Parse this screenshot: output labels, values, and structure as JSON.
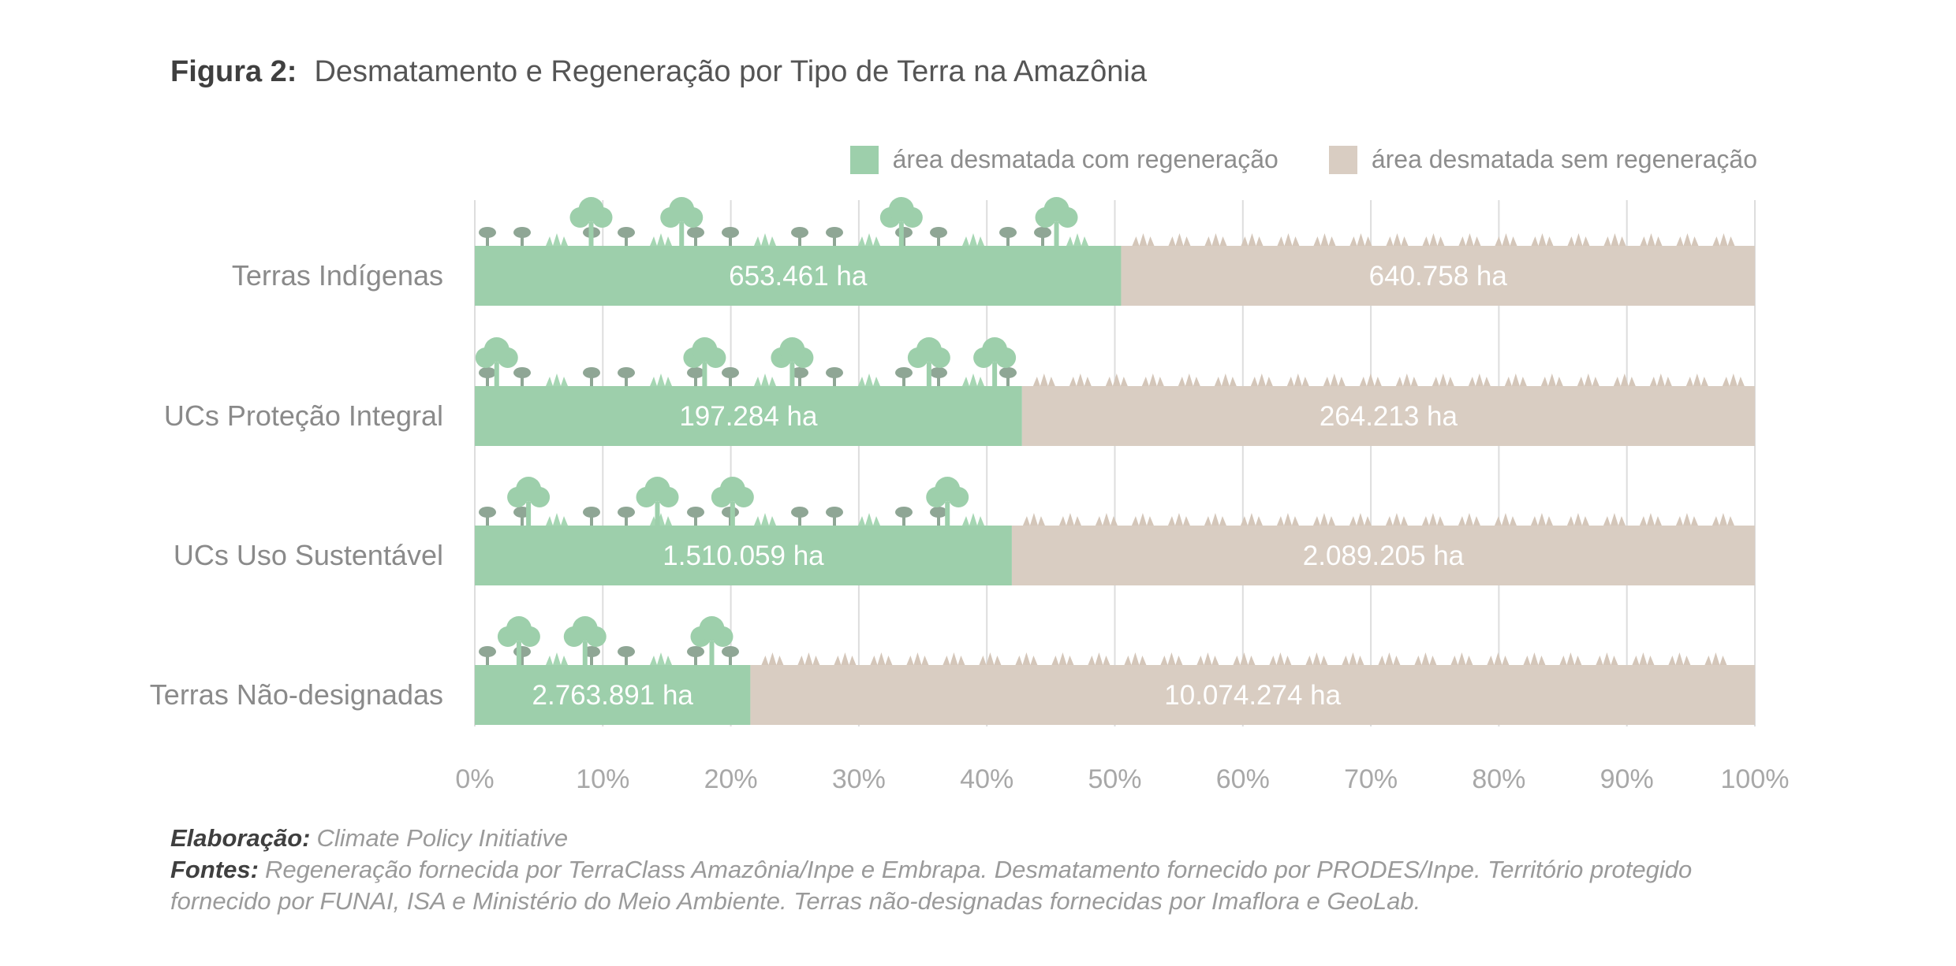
{
  "figure": {
    "label": "Figura 2:",
    "title": "Desmatamento e Regeneração por Tipo de Terra na Amazônia"
  },
  "legend": [
    {
      "label": "área desmatada com regeneração",
      "color": "#9dcfab"
    },
    {
      "label": "área desmatada sem regeneração",
      "color": "#d9cdc2"
    }
  ],
  "chart_data": {
    "type": "bar",
    "orientation": "horizontal",
    "stacked": "percent",
    "categories": [
      "Terras Indígenas",
      "UCs Proteção Integral",
      "UCs Uso Sustentável",
      "Terras Não-designadas"
    ],
    "series": [
      {
        "name": "área desmatada com regeneração",
        "color": "#9dcfab",
        "values": [
          653461,
          197284,
          1510059,
          2763891
        ],
        "labels": [
          "653.461 ha",
          "197.284 ha",
          "1.510.059 ha",
          "2.763.891 ha"
        ]
      },
      {
        "name": "área desmatada sem regeneração",
        "color": "#d9cdc2",
        "values": [
          640758,
          264213,
          2089205,
          10074274
        ],
        "labels": [
          "640.758 ha",
          "264.213 ha",
          "2.089.205 ha",
          "10.074.274 ha"
        ]
      }
    ],
    "xlim": [
      0,
      100
    ],
    "x_ticks": [
      "0%",
      "10%",
      "20%",
      "30%",
      "40%",
      "50%",
      "60%",
      "70%",
      "80%",
      "90%",
      "100%"
    ],
    "grid": true,
    "legend_position": "top-right"
  },
  "notes": {
    "elaboration_label": "Elaboração:",
    "elaboration_text": "Climate Policy Initiative",
    "sources_label": "Fontes:",
    "sources_text": "Regeneração fornecida por TerraClass Amazônia/Inpe e Embrapa. Desmatamento fornecido por PRODES/Inpe. Território protegido fornecido por FUNAI, ISA e Ministério do Meio Ambiente. Terras não-designadas fornecidas por Imaflora e GeoLab."
  }
}
